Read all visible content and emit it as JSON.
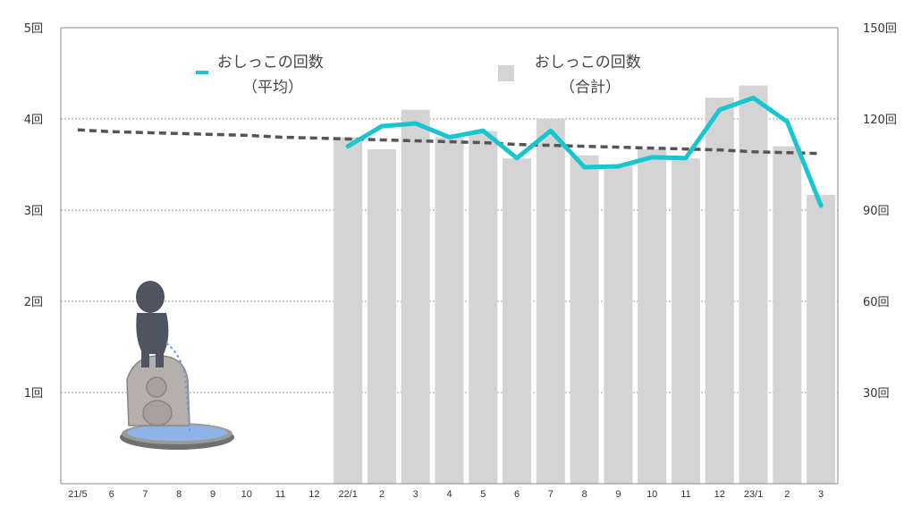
{
  "chart_data": {
    "type": "bar",
    "categories": [
      "21/5",
      "6",
      "7",
      "8",
      "9",
      "10",
      "11",
      "12",
      "22/1",
      "2",
      "3",
      "4",
      "5",
      "6",
      "7",
      "8",
      "9",
      "10",
      "11",
      "12",
      "23/1",
      "2",
      "3"
    ],
    "left_axis": {
      "ticks": [
        "1回",
        "2回",
        "3回",
        "4回",
        "5回"
      ],
      "ylim": [
        0,
        5
      ]
    },
    "right_axis": {
      "ticks": [
        "30回",
        "60回",
        "90回",
        "120回",
        "150回"
      ],
      "ylim": [
        0,
        150
      ]
    },
    "series": [
      {
        "name": "おしっこの回数\n（合計）",
        "type": "bar",
        "axis": "right",
        "color": "#d4d4d4",
        "values": [
          null,
          null,
          null,
          null,
          null,
          null,
          null,
          null,
          114,
          110,
          123,
          114,
          116,
          107,
          120,
          108,
          105,
          110,
          107,
          127,
          131,
          111,
          95
        ]
      },
      {
        "name": "おしっこの回数\n（平均）",
        "type": "line",
        "axis": "left",
        "color": "#17c6cf",
        "values": [
          null,
          null,
          null,
          null,
          null,
          null,
          null,
          null,
          3.7,
          3.92,
          3.95,
          3.8,
          3.87,
          3.57,
          3.87,
          3.47,
          3.48,
          3.58,
          3.57,
          4.1,
          4.23,
          3.97,
          3.05
        ]
      },
      {
        "name": "",
        "type": "trendline",
        "axis": "left",
        "color": "#555555",
        "values": [
          3.88,
          3.86,
          3.85,
          3.84,
          3.83,
          3.82,
          3.8,
          3.79,
          3.78,
          3.77,
          3.76,
          3.75,
          3.74,
          3.72,
          3.71,
          3.7,
          3.69,
          3.68,
          3.67,
          3.66,
          3.64,
          3.63,
          3.62
        ]
      }
    ],
    "grid": true,
    "legend_position": "top",
    "legend": [
      {
        "label": "おしっこの回数\n（平均）",
        "marker": "line"
      },
      {
        "label": "おしっこの回数\n（合計）",
        "marker": "square"
      }
    ]
  },
  "illustration": {
    "icon": "manneken-pis-statue-icon"
  }
}
